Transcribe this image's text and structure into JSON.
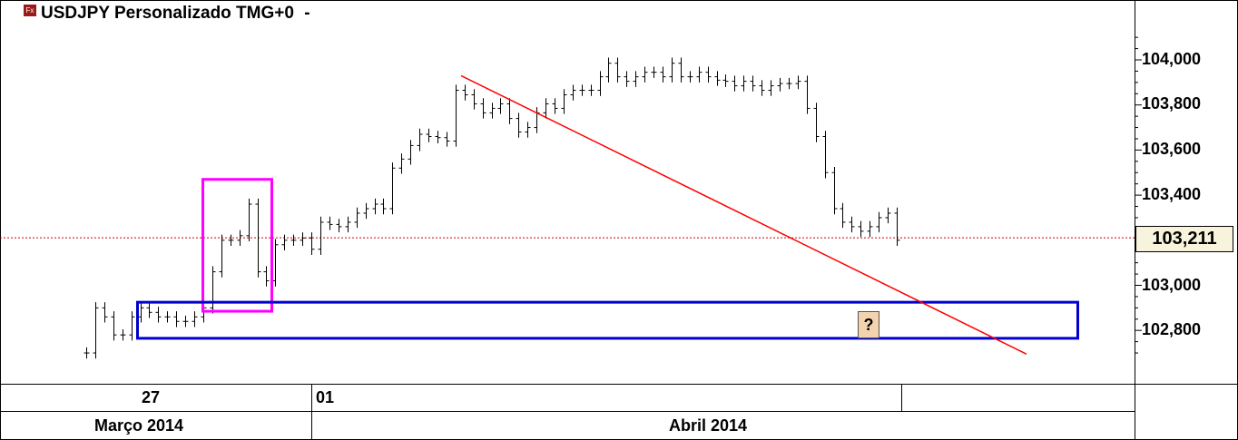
{
  "header": {
    "title": "USDJPY Personalizado TMG+0",
    "dropdown_glyph": "-",
    "logo_text": "Fx"
  },
  "chart_data": {
    "type": "ohlc",
    "title": "USDJPY Personalizado TMG+0",
    "ylim": [
      102650,
      104150
    ],
    "yticks": [
      104000,
      103800,
      103600,
      103400,
      103000,
      102800
    ],
    "ytick_labels": [
      "104,000",
      "103,800",
      "103,600",
      "103,400",
      "103,000",
      "102,800"
    ],
    "current_price": 103211,
    "current_price_label": "103,211",
    "bar_half_range": 25,
    "closes": [
      102700,
      102900,
      102860,
      102780,
      102780,
      102860,
      102900,
      102880,
      102860,
      102860,
      102840,
      102840,
      102860,
      102900,
      103060,
      103200,
      103200,
      103220,
      103360,
      103060,
      103020,
      103180,
      103200,
      103200,
      103210,
      103160,
      103280,
      103270,
      103260,
      103280,
      103320,
      103340,
      103360,
      103340,
      103520,
      103560,
      103620,
      103670,
      103660,
      103655,
      103640,
      103865,
      103845,
      103805,
      103765,
      103785,
      103805,
      103740,
      103680,
      103700,
      103765,
      103805,
      103785,
      103845,
      103865,
      103865,
      103865,
      103925,
      103985,
      103925,
      103905,
      103925,
      103945,
      103945,
      103925,
      103985,
      103925,
      103925,
      103945,
      103925,
      103910,
      103905,
      103885,
      103905,
      103885,
      103865,
      103885,
      103895,
      103895,
      103905,
      103785,
      103660,
      103500,
      103340,
      103280,
      103260,
      103240,
      103260,
      103300,
      103320,
      103200
    ],
    "time_labels_row1": [
      "27",
      "01"
    ],
    "time_labels_row2": [
      "Março 2014",
      "Abril 2014"
    ],
    "annotations": {
      "magenta_box": {
        "price_top": 103470,
        "price_bottom": 102885,
        "color": "#ff00ff"
      },
      "blue_box": {
        "price_top": 102925,
        "price_bottom": 102765,
        "color": "#0000cc"
      },
      "trendline": {
        "price_start": 103930,
        "price_end": 102695,
        "color": "#ff0000"
      },
      "current_price_line_color": "#cc0000",
      "question_label": "?"
    }
  }
}
